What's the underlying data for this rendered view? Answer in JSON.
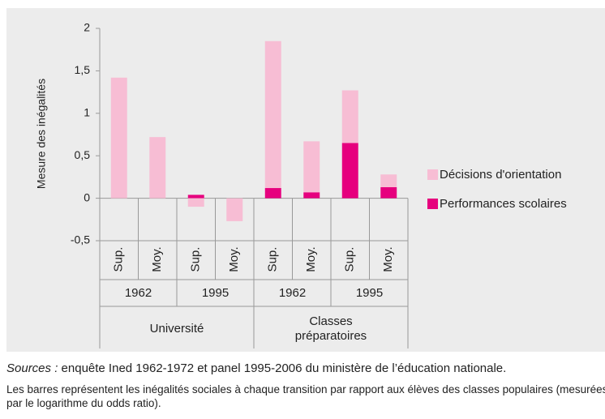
{
  "chart_data": {
    "type": "stacked-bar",
    "y_label": "Mesure des inégalités",
    "categories": [
      "Sup.",
      "Moy.",
      "Sup.",
      "Moy.",
      "Sup.",
      "Moy.",
      "Sup.",
      "Moy."
    ],
    "years": [
      "1962",
      "1995",
      "1962",
      "1995"
    ],
    "groups": [
      "Université",
      "Classes préparatoires"
    ],
    "series": [
      {
        "name": "Performances scolaires",
        "color": "#e6007e",
        "values": [
          0,
          0,
          0.04,
          0,
          0.12,
          0.07,
          0.65,
          0.13
        ]
      },
      {
        "name": "Décisions d'orientation",
        "color": "#f7bdd4",
        "values": [
          1.42,
          0.72,
          -0.1,
          -0.27,
          1.73,
          0.6,
          0.62,
          0.15
        ]
      }
    ],
    "ylim": [
      -0.5,
      2
    ],
    "yticks": [
      {
        "value": -0.5,
        "label": "-0,5"
      },
      0,
      {
        "value": 0.5,
        "label": "0,5"
      },
      1,
      {
        "value": 1.5,
        "label": "1,5"
      },
      2
    ],
    "legend": "right",
    "legend_order": [
      1,
      0
    ]
  },
  "footer": {
    "source_label": "Sources :",
    "source": "enquête Ined 1962-1972 et panel 1995-2006 du ministère de l’éducation nationale.",
    "note": "Les barres représentent les inégalités sociales à chaque transition par rapport aux élèves des classes populaires (mesurées par le logarithme du odds ratio)."
  }
}
